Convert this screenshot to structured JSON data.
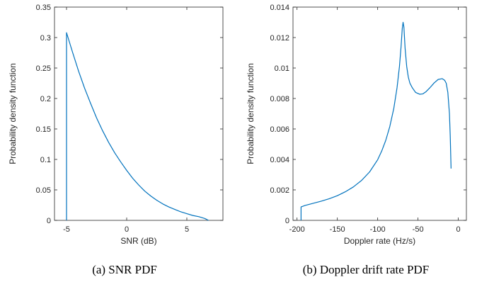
{
  "chart_data": [
    {
      "type": "line",
      "xlabel": "SNR (dB)",
      "ylabel": "Probability density function",
      "caption": "(a) SNR PDF",
      "xlim": [
        -6,
        8
      ],
      "ylim": [
        0,
        0.35
      ],
      "xticks": [
        -5,
        0,
        5
      ],
      "yticks": [
        0,
        0.05,
        0.1,
        0.15,
        0.2,
        0.25,
        0.3,
        0.35
      ],
      "yticklabels": [
        "0",
        "0.05",
        "0.1",
        "0.15",
        "0.2",
        "0.25",
        "0.3",
        "0.35"
      ],
      "grid": false,
      "color": "#0072BD",
      "series": [
        {
          "x": [
            -5,
            -5,
            -4.5,
            -4,
            -3.5,
            -3,
            -2.5,
            -2,
            -1.5,
            -1,
            -0.5,
            0,
            0.5,
            1,
            1.5,
            2,
            2.5,
            3,
            3.5,
            4,
            4.5,
            5,
            5.5,
            6,
            6.5,
            6.8
          ],
          "y": [
            0,
            0.308,
            0.276,
            0.245,
            0.217,
            0.192,
            0.168,
            0.147,
            0.128,
            0.111,
            0.096,
            0.082,
            0.069,
            0.058,
            0.048,
            0.04,
            0.033,
            0.027,
            0.022,
            0.018,
            0.014,
            0.011,
            0.008,
            0.006,
            0.003,
            0
          ]
        }
      ]
    },
    {
      "type": "line",
      "xlabel": "Doppler rate (Hz/s)",
      "ylabel": "Probability density function",
      "caption": "(b) Doppler drift rate PDF",
      "xlim": [
        -205,
        10
      ],
      "ylim": [
        0,
        0.014
      ],
      "xticks": [
        -200,
        -150,
        -100,
        -50,
        0
      ],
      "yticks": [
        0,
        0.002,
        0.004,
        0.006,
        0.008,
        0.01,
        0.012,
        0.014
      ],
      "yticklabels": [
        "0",
        "0.002",
        "0.004",
        "0.006",
        "0.008",
        "0.01",
        "0.012",
        "0.014"
      ],
      "grid": false,
      "color": "#0072BD",
      "series": [
        {
          "x": [
            -195,
            -195,
            -190,
            -180,
            -170,
            -160,
            -150,
            -140,
            -130,
            -120,
            -110,
            -100,
            -95,
            -90,
            -85,
            -80,
            -76,
            -73,
            -71,
            -69.5,
            -68.5,
            -67.5,
            -66,
            -64,
            -62,
            -60,
            -57,
            -53,
            -48,
            -44,
            -40,
            -35,
            -30,
            -25,
            -20,
            -17,
            -15,
            -13,
            -11,
            -10,
            -9
          ],
          "y": [
            0,
            0.00088,
            0.00098,
            0.00112,
            0.00126,
            0.00142,
            0.00162,
            0.00188,
            0.0022,
            0.00262,
            0.00318,
            0.00398,
            0.00455,
            0.00525,
            0.00615,
            0.00735,
            0.0087,
            0.0101,
            0.0114,
            0.0126,
            0.013,
            0.0127,
            0.0113,
            0.0101,
            0.0094,
            0.009,
            0.0087,
            0.0084,
            0.00828,
            0.0083,
            0.00845,
            0.00872,
            0.00902,
            0.00925,
            0.0093,
            0.0092,
            0.009,
            0.0084,
            0.007,
            0.0055,
            0.0034
          ]
        }
      ]
    }
  ]
}
